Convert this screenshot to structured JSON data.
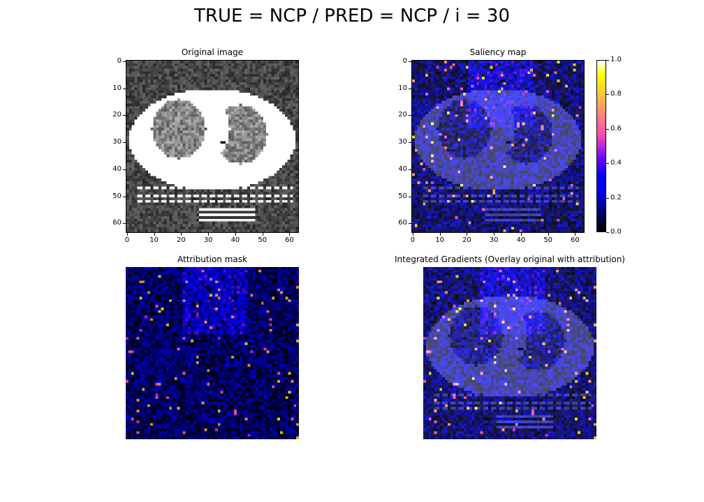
{
  "figure": {
    "suptitle": "TRUE = NCP / PRED = NCP / i = 30"
  },
  "panels": {
    "original": {
      "title": "Original image"
    },
    "saliency": {
      "title": "Saliency map"
    },
    "attribution": {
      "title": "Attribution mask"
    },
    "integrated": {
      "title": "Integrated Gradients (Overlay original with attribution)"
    }
  },
  "chart_data": [
    {
      "type": "heatmap",
      "title": "Original image",
      "colormap": "gray",
      "grid_size": [
        64,
        64
      ],
      "xlim": [
        0,
        63
      ],
      "ylim": [
        63,
        0
      ],
      "xticks": [
        "0",
        "10",
        "20",
        "30",
        "40",
        "50",
        "60"
      ],
      "yticks": [
        "0",
        "10",
        "20",
        "30",
        "40",
        "50",
        "60"
      ]
    },
    {
      "type": "heatmap",
      "title": "Saliency map",
      "colormap": "gnuplot2",
      "grid_size": [
        64,
        64
      ],
      "xlim": [
        0,
        63
      ],
      "ylim": [
        63,
        0
      ],
      "xticks": [
        "0",
        "10",
        "20",
        "30",
        "40",
        "50",
        "60"
      ],
      "yticks": [
        "0",
        "10",
        "20",
        "30",
        "40",
        "50",
        "60"
      ],
      "colorbar": {
        "range": [
          0.0,
          1.0
        ],
        "ticks": [
          "0.0",
          "0.2",
          "0.4",
          "0.6",
          "0.8",
          "1.0"
        ]
      }
    },
    {
      "type": "heatmap",
      "title": "Attribution mask",
      "colormap": "gnuplot2",
      "grid_size": [
        64,
        64
      ],
      "axes": "off"
    },
    {
      "type": "heatmap",
      "title": "Integrated Gradients (Overlay original with attribution)",
      "colormap": "gnuplot2 overlay on gray",
      "grid_size": [
        64,
        64
      ],
      "axes": "off"
    }
  ]
}
